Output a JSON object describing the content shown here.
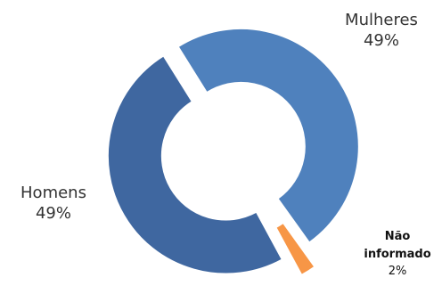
{
  "chart_data": {
    "type": "pie",
    "variant": "donut-exploded",
    "slices": [
      {
        "name": "Mulheres",
        "value": 49,
        "label": "49%",
        "color": "#4F81BD"
      },
      {
        "name": "Não informado",
        "value": 2,
        "label": "2%",
        "color": "#F79646"
      },
      {
        "name": "Homens",
        "value": 49,
        "label": "49%",
        "color": "#3F67A0"
      }
    ]
  }
}
